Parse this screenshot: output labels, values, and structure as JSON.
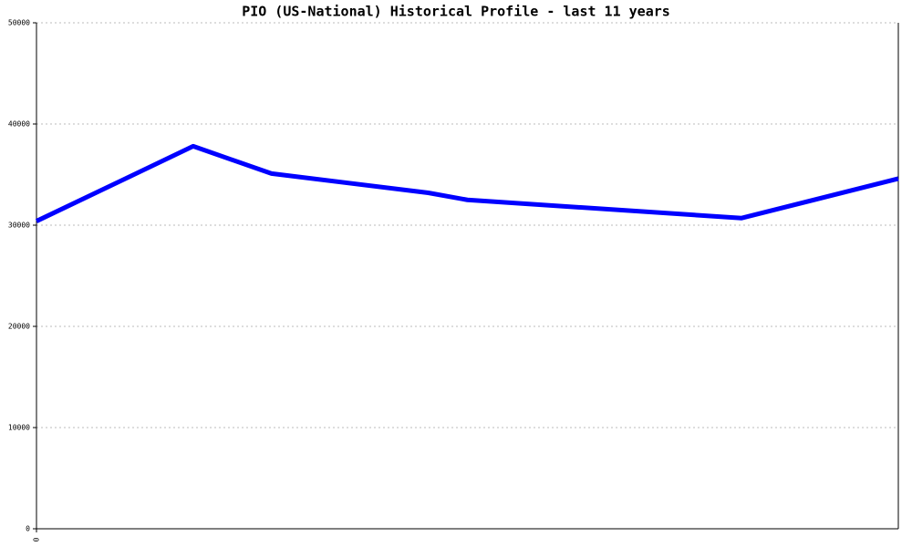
{
  "chart_data": {
    "type": "line",
    "title": "PIO (US-National) Historical Profile - last 11 years",
    "x": [
      0,
      2,
      3,
      5,
      5.5,
      9,
      11
    ],
    "values": [
      30400,
      37800,
      35100,
      33200,
      32500,
      30700,
      34600
    ],
    "color": "#0000ff",
    "xlim": [
      0,
      11
    ],
    "xticks": [
      0
    ],
    "ylim": [
      0,
      50000
    ],
    "yticks": [
      0,
      10000,
      20000,
      30000,
      40000,
      50000
    ],
    "grid": true
  }
}
